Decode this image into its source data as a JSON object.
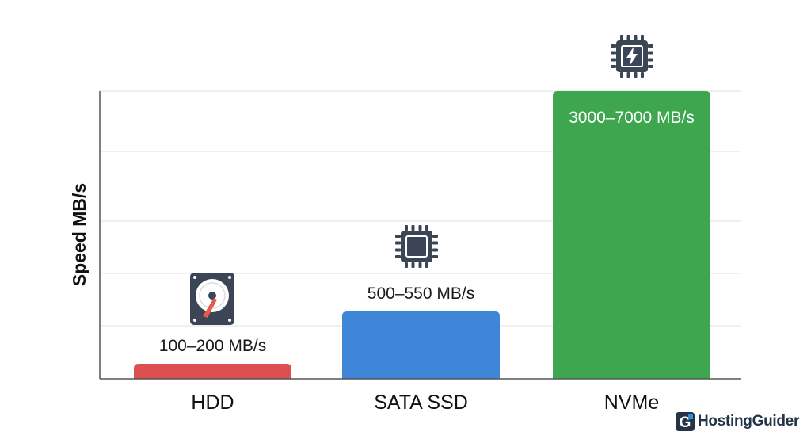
{
  "chart_data": {
    "type": "bar",
    "categories": [
      "HDD",
      "SATA SSD",
      "NVMe"
    ],
    "values": [
      150,
      525,
      5000
    ],
    "value_labels": [
      "100–200 MB/s",
      "500–550 MB/s",
      "3000–7000 MB/s"
    ],
    "ylabel": "Speed MB/s",
    "xlabel": "",
    "title": "",
    "ylim": [
      0,
      5000
    ],
    "grid": true,
    "legend": "none",
    "bar_icons": [
      "hard-drive-icon",
      "chip-icon",
      "chip-lightning-icon"
    ],
    "colors": [
      "#dd5050",
      "#3f86d9",
      "#3ea64e"
    ]
  },
  "logo": {
    "text": "HostingGuider",
    "mark": "G"
  },
  "colors": {
    "axis": "#555555",
    "grid": "#e2e2e2",
    "icon": "#3b4556",
    "icon_accent": "#e35a4a",
    "logo_text": "#243347",
    "logo_accent": "#2f8fd6"
  }
}
